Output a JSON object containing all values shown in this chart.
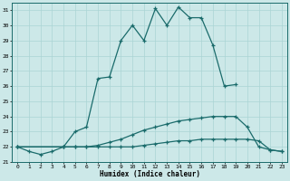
{
  "xlabel": "Humidex (Indice chaleur)",
  "background_color": "#cce8e8",
  "line_color": "#1a6b6b",
  "grid_color": "#aad4d4",
  "xlim": [
    -0.5,
    23.5
  ],
  "ylim": [
    21,
    31.5
  ],
  "xticks": [
    0,
    1,
    2,
    3,
    4,
    5,
    6,
    7,
    8,
    9,
    10,
    11,
    12,
    13,
    14,
    15,
    16,
    17,
    18,
    19,
    20,
    21,
    22,
    23
  ],
  "yticks": [
    21,
    22,
    23,
    24,
    25,
    26,
    27,
    28,
    29,
    30,
    31
  ],
  "line1_x": [
    0,
    1,
    2,
    3,
    4,
    5,
    6,
    7,
    8,
    9,
    10,
    11,
    12,
    13,
    14,
    15,
    16,
    17,
    18,
    19
  ],
  "line1_y": [
    22.0,
    21.7,
    21.5,
    21.7,
    22.0,
    23.0,
    23.3,
    26.5,
    26.6,
    29.0,
    30.0,
    29.0,
    31.1,
    30.0,
    31.2,
    30.5,
    30.5,
    28.7,
    26.0,
    26.1
  ],
  "line2_x": [
    0,
    4,
    5,
    6,
    7,
    8,
    9,
    10,
    11,
    12,
    13,
    14,
    15,
    16,
    17,
    18,
    19,
    20,
    21,
    22,
    23
  ],
  "line2_y": [
    22.0,
    22.0,
    22.0,
    22.0,
    22.1,
    22.3,
    22.5,
    22.8,
    23.1,
    23.3,
    23.5,
    23.7,
    23.8,
    23.9,
    24.0,
    24.0,
    24.0,
    23.3,
    22.0,
    21.8,
    21.7
  ],
  "line3_x": [
    0,
    4,
    5,
    6,
    7,
    8,
    9,
    10,
    11,
    12,
    13,
    14,
    15,
    16,
    17,
    18,
    19,
    20,
    21,
    22,
    23
  ],
  "line3_y": [
    22.0,
    22.0,
    22.0,
    22.0,
    22.0,
    22.0,
    22.0,
    22.0,
    22.1,
    22.2,
    22.3,
    22.4,
    22.4,
    22.5,
    22.5,
    22.5,
    22.5,
    22.5,
    22.4,
    21.8,
    21.7
  ]
}
